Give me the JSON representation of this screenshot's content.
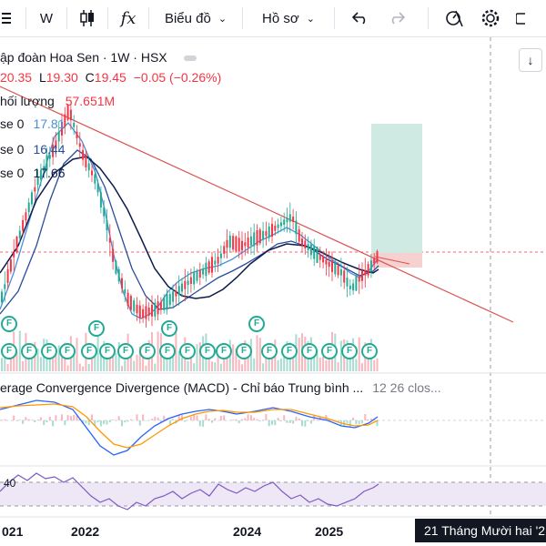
{
  "toolbar": {
    "interval": "W",
    "indicator_icon": "fx",
    "chart_type_label": "Biểu đồ",
    "profile_label": "Hồ sơ"
  },
  "legend": {
    "title": "ập đoàn Hoa Sen · 1W · HSX",
    "high": "20.35",
    "low_prefix": "L",
    "low": "19.30",
    "close_prefix": "C",
    "close": "19.45",
    "change": "−0.05 (−0.26%)",
    "volume_label": "hối lượng",
    "volume_value": "57.651M"
  },
  "moving_averages": [
    {
      "label": "se 0",
      "value": "17.81",
      "color": "#4a90d9"
    },
    {
      "label": "se 0",
      "value": "16.44",
      "color": "#2a4d9b"
    },
    {
      "label": "se 0",
      "value": "17.66",
      "color": "#0d1b4d"
    }
  ],
  "macd": {
    "label": "erage Convergence Divergence (MACD) - Chỉ báo Trung bình ...",
    "params": "12 26 clos..."
  },
  "rsi": {
    "level": "40"
  },
  "x_axis": [
    "021",
    "2022",
    "2024",
    "2025"
  ],
  "crosshair_tooltip": "21 Tháng Mười hai '2",
  "flag_letter": "F",
  "colors": {
    "up": "#22ab94",
    "down": "#f23645",
    "trendline": "#d9534f",
    "macd_line": "#2962ff",
    "signal_line": "#ff9800",
    "rsi_line": "#7e57c2",
    "target_zone": "#cfe9e3",
    "stop_zone": "#f7d0d0"
  },
  "icons": [
    "menu-icon",
    "candles-icon",
    "fx-icon",
    "undo-icon",
    "redo-icon",
    "alert-icon",
    "settings-icon",
    "camera-icon",
    "scroll-down-icon"
  ]
}
